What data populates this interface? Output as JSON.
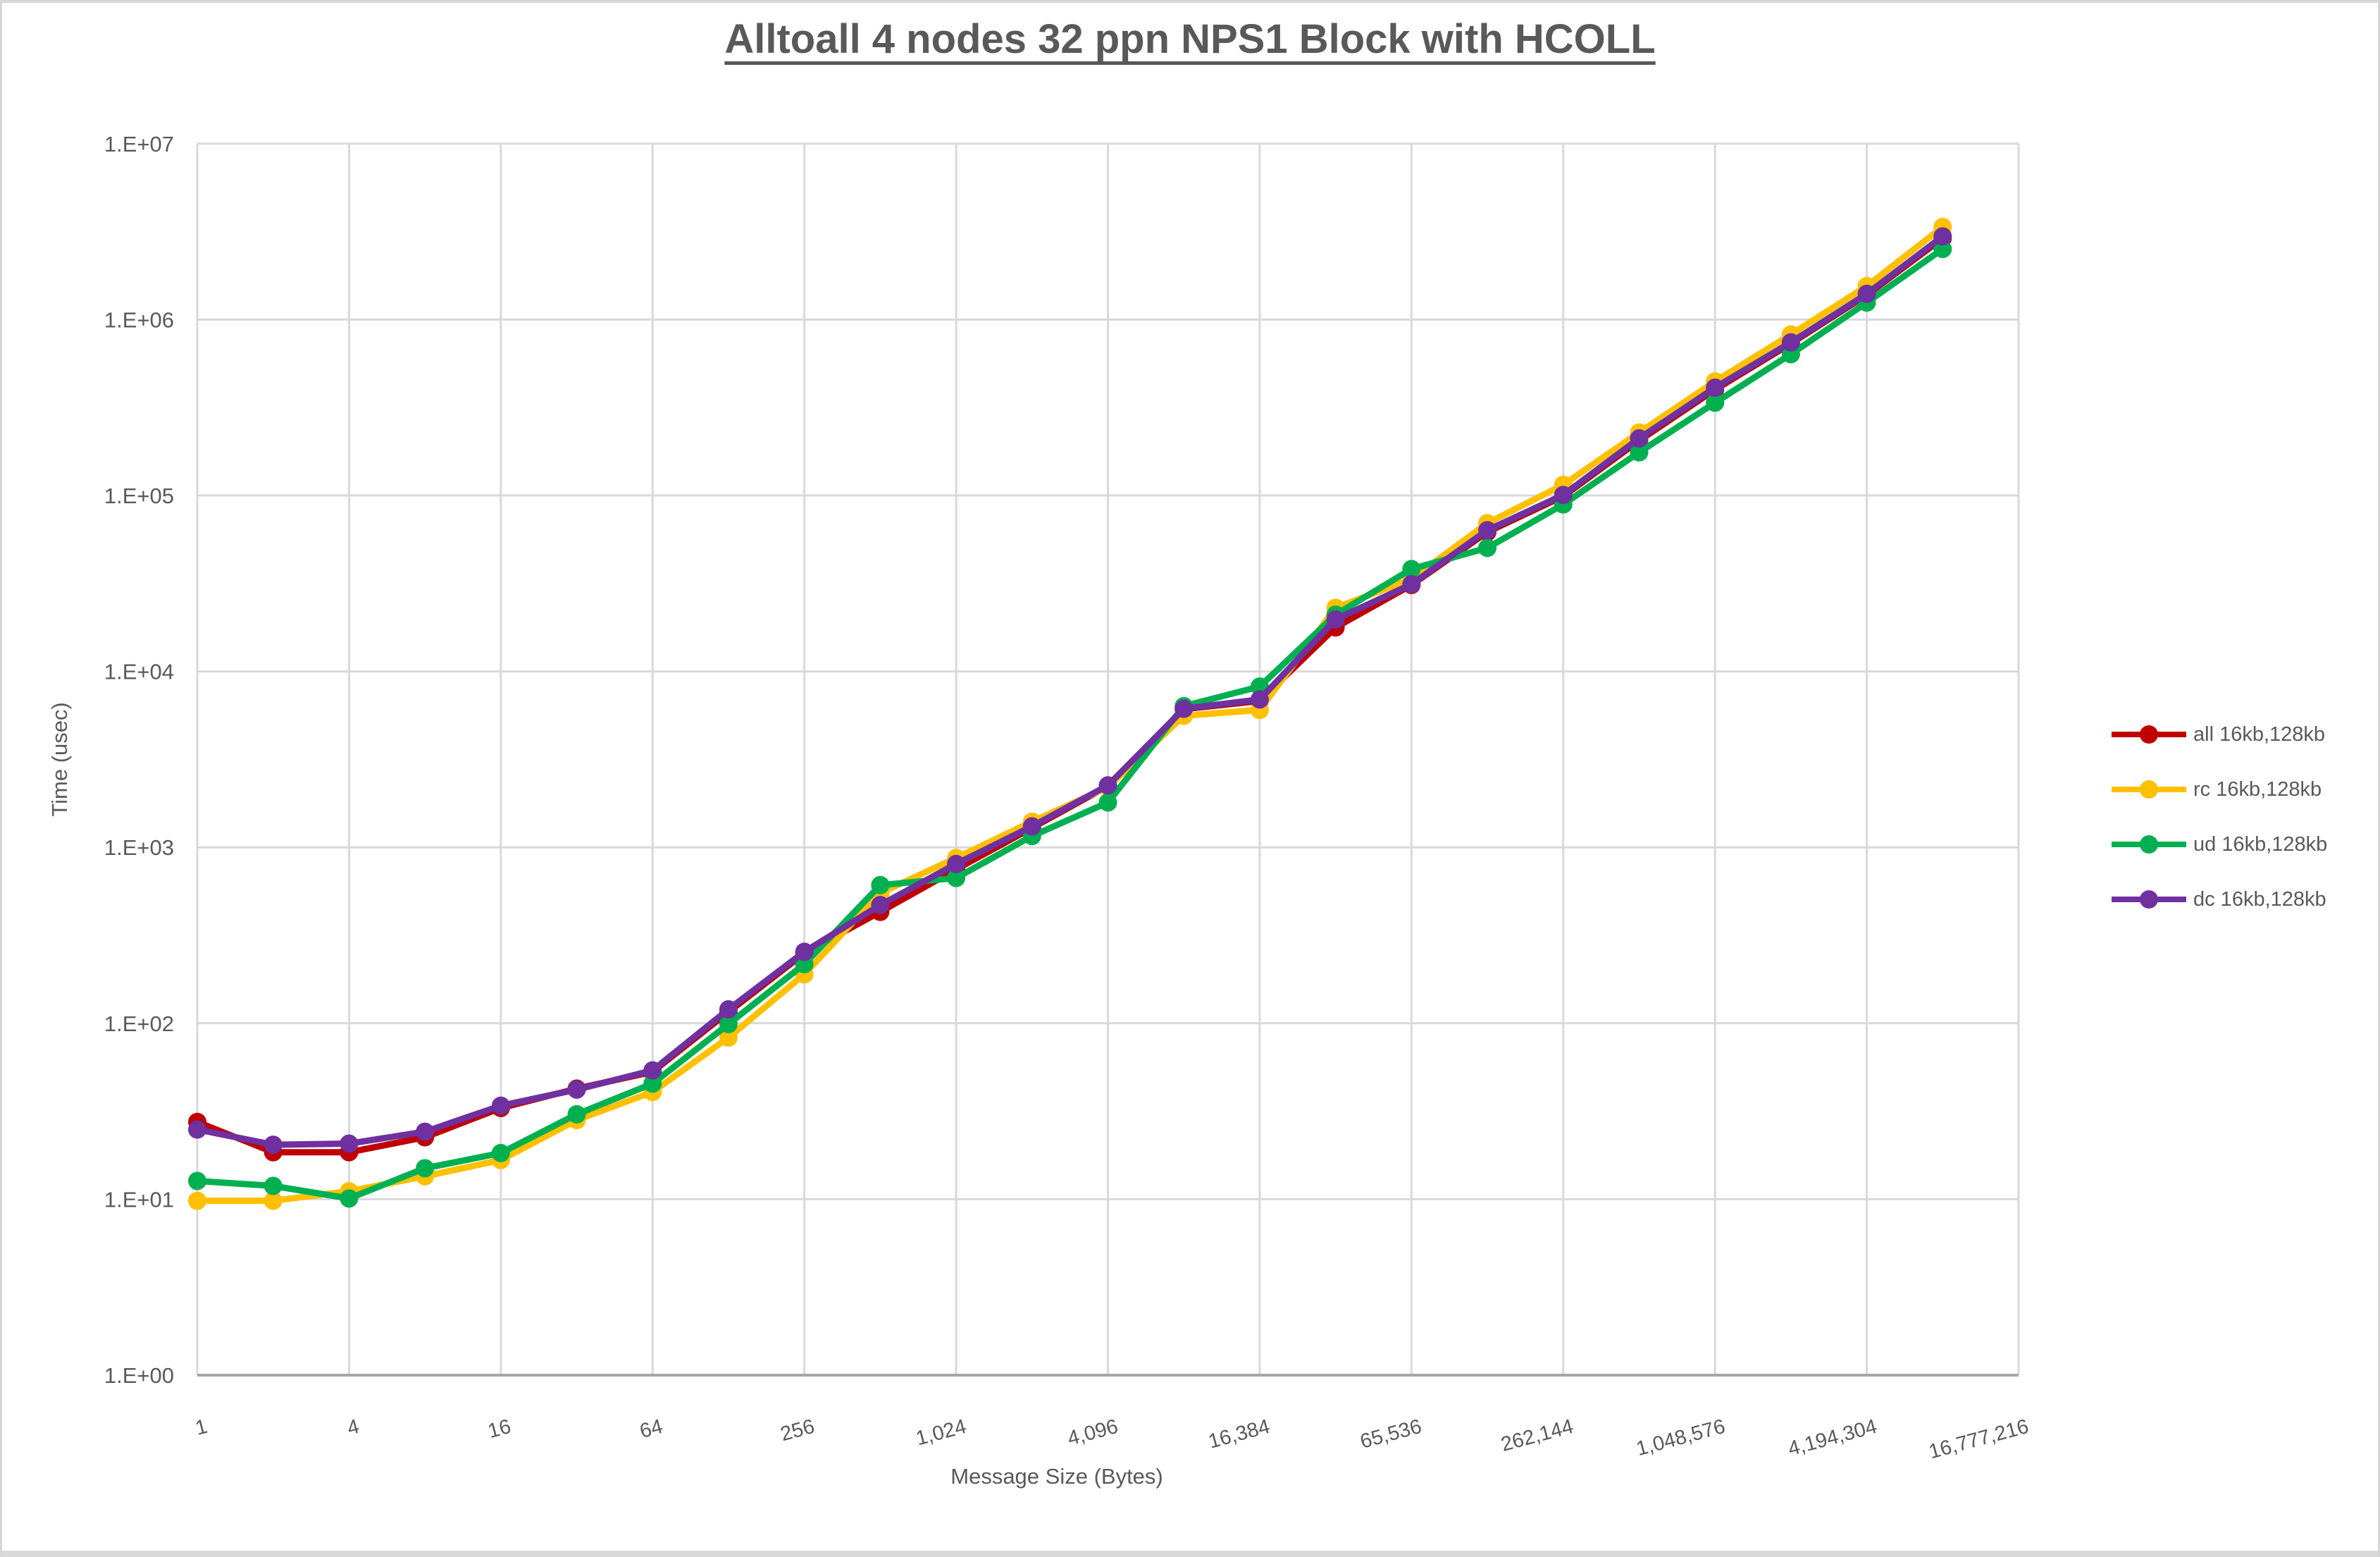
{
  "chart_data": {
    "type": "line",
    "title": "Alltoall 4 nodes 32 ppn NPS1 Block with HCOLL",
    "xlabel": "Message Size (Bytes)",
    "ylabel": "Time (usec)",
    "x_scale": "log2",
    "y_scale": "log10",
    "xlim": [
      1,
      16777216
    ],
    "ylim": [
      1,
      10000000
    ],
    "grid": "on",
    "legend_position": "right",
    "x_gridline_labels": [
      "1",
      "4",
      "16",
      "64",
      "256",
      "1,024",
      "4,096",
      "16,384",
      "65,536",
      "262,144",
      "1,048,576",
      "4,194,304",
      "16,777,216"
    ],
    "y_gridline_labels": [
      "1.E+00",
      "1.E+01",
      "1.E+02",
      "1.E+03",
      "1.E+04",
      "1.E+05",
      "1.E+06",
      "1.E+07"
    ],
    "sizes": [
      1,
      2,
      4,
      8,
      16,
      32,
      64,
      128,
      256,
      512,
      1024,
      2048,
      4096,
      8192,
      16384,
      32768,
      65536,
      131072,
      262144,
      524288,
      1048576,
      2097152,
      4194304,
      8388608
    ],
    "series": [
      {
        "id": "all",
        "name": "all 16kb,128kb",
        "color": "#C00000",
        "values": [
          27.5,
          18.5,
          18.5,
          22.5,
          33,
          42.5,
          53,
          116,
          250,
          430,
          750,
          1290,
          2230,
          6100,
          6800,
          17800,
          31000,
          62000,
          99000,
          205000,
          400000,
          730000,
          1380000,
          2900000
        ]
      },
      {
        "id": "rc",
        "name": "rc 16kb,128kb",
        "color": "#FFC000",
        "values": [
          9.8,
          9.8,
          11.1,
          13.5,
          16.7,
          28.2,
          40.7,
          83,
          190,
          550,
          870,
          1400,
          2200,
          5600,
          6040,
          23000,
          33500,
          69600,
          115000,
          228000,
          445000,
          823000,
          1550000,
          3360000
        ]
      },
      {
        "id": "ud",
        "name": "ud 16kb,128kb",
        "color": "#00B050",
        "values": [
          12.7,
          11.9,
          10.1,
          15,
          18.3,
          30.4,
          45.4,
          99,
          217,
          610,
          670,
          1160,
          1800,
          6350,
          8200,
          21000,
          38200,
          50400,
          89000,
          176000,
          337000,
          636000,
          1250000,
          2520000
        ]
      },
      {
        "id": "dc",
        "name": "dc 16kb,128kb",
        "color": "#7030A0",
        "values": [
          24.9,
          20.4,
          20.7,
          24.2,
          34,
          42,
          54,
          120,
          255,
          470,
          805,
          1316,
          2250,
          6130,
          6930,
          19750,
          31300,
          63500,
          100700,
          211000,
          410000,
          742000,
          1400000,
          2970000
        ]
      }
    ]
  }
}
